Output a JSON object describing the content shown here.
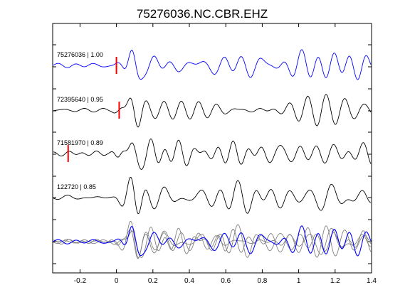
{
  "chart_data": {
    "type": "line",
    "title": "75276036.NC.CBR.EHZ",
    "xlabel": "",
    "ylabel": "",
    "xlim": [
      -0.35,
      1.4
    ],
    "x_ticks": [
      -0.2,
      0,
      0.2,
      0.4,
      0.6,
      0.8,
      1,
      1.2,
      1.4
    ],
    "x_tick_labels": [
      "-0.2",
      "0",
      "0.2",
      "0.4",
      "0.6",
      "0.8",
      "1",
      "1.2",
      "1.4"
    ],
    "grid": false,
    "legend": "none",
    "colors": {
      "reference": "#0000ff",
      "other": "#000000",
      "stack_other": "#808080",
      "pick": "#ff0000"
    },
    "traces": [
      {
        "label": "75276036 | 1.00",
        "color": "#0000ff",
        "pick_time": 0.0,
        "seed": 1,
        "onset": -0.02
      },
      {
        "label": "72395640 | 0.95",
        "color": "#000000",
        "pick_time": 0.015,
        "seed": 2,
        "onset": -0.03
      },
      {
        "label": "71581970 | 0.89",
        "color": "#000000",
        "pick_time": -0.265,
        "seed": 3,
        "onset": -0.04
      },
      {
        "label": "122720 | 0.85",
        "color": "#000000",
        "pick_time": null,
        "seed": 4,
        "onset": -0.02
      }
    ],
    "stack": {
      "reference_color": "#0000ff",
      "other_color": "#808080"
    }
  }
}
